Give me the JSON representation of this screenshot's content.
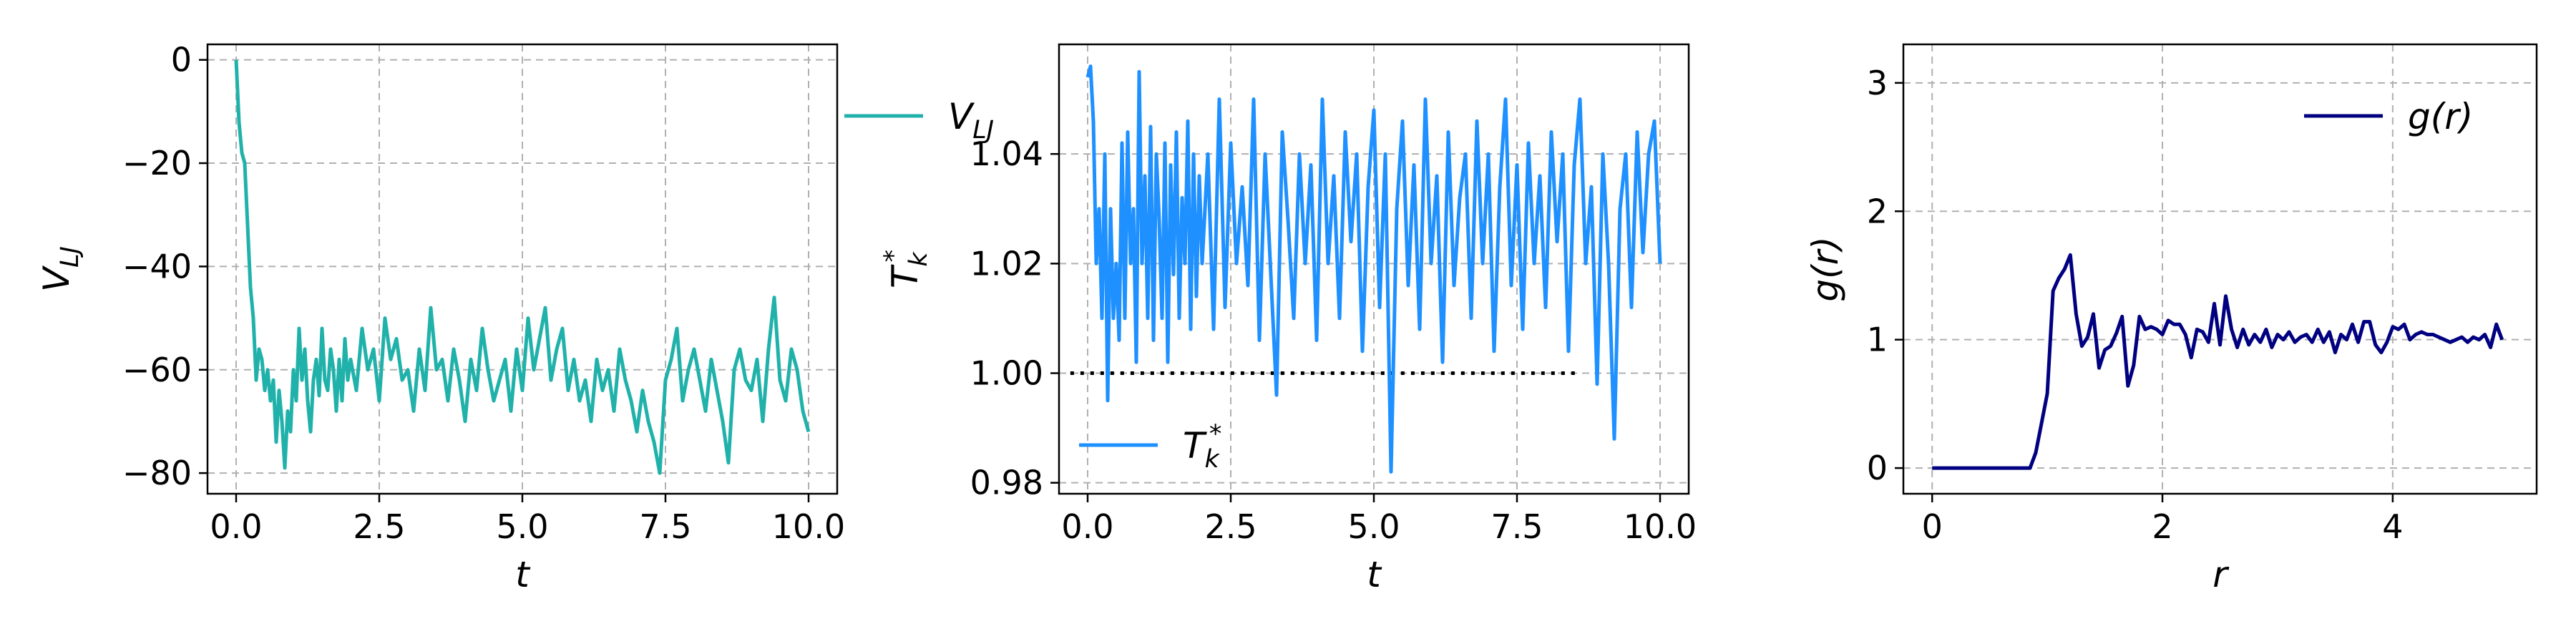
{
  "chart_data": [
    {
      "type": "line",
      "xlabel": "t",
      "ylabel": "V_LJ",
      "xlim": [
        -0.5,
        10.5
      ],
      "ylim": [
        -84,
        3
      ],
      "xticks": [
        0.0,
        2.5,
        5.0,
        7.5,
        10.0
      ],
      "yticks": [
        0,
        -20,
        -40,
        -60,
        -80
      ],
      "xtick_labels": [
        "0.0",
        "2.5",
        "5.0",
        "7.5",
        "10.0"
      ],
      "ytick_labels": [
        "0",
        "−20",
        "−40",
        "−60",
        "−80"
      ],
      "grid": true,
      "legend": {
        "placement": "top-right",
        "entries": [
          "V_LJ"
        ]
      },
      "series": [
        {
          "name": "V_LJ",
          "color": "#20b2aa",
          "x": [
            0.0,
            0.05,
            0.1,
            0.15,
            0.2,
            0.25,
            0.3,
            0.35,
            0.4,
            0.45,
            0.5,
            0.55,
            0.6,
            0.65,
            0.7,
            0.75,
            0.8,
            0.85,
            0.9,
            0.95,
            1.0,
            1.05,
            1.1,
            1.15,
            1.2,
            1.25,
            1.3,
            1.35,
            1.4,
            1.45,
            1.5,
            1.55,
            1.6,
            1.65,
            1.7,
            1.75,
            1.8,
            1.85,
            1.9,
            1.95,
            2.0,
            2.1,
            2.2,
            2.3,
            2.4,
            2.5,
            2.6,
            2.7,
            2.8,
            2.9,
            3.0,
            3.1,
            3.2,
            3.3,
            3.4,
            3.5,
            3.6,
            3.7,
            3.8,
            3.9,
            4.0,
            4.1,
            4.2,
            4.3,
            4.4,
            4.5,
            4.6,
            4.7,
            4.8,
            4.9,
            5.0,
            5.1,
            5.2,
            5.3,
            5.4,
            5.5,
            5.6,
            5.7,
            5.8,
            5.9,
            6.0,
            6.1,
            6.2,
            6.3,
            6.4,
            6.5,
            6.6,
            6.7,
            6.8,
            6.9,
            7.0,
            7.1,
            7.2,
            7.3,
            7.4,
            7.5,
            7.6,
            7.7,
            7.8,
            7.9,
            8.0,
            8.1,
            8.2,
            8.3,
            8.4,
            8.5,
            8.6,
            8.7,
            8.8,
            8.9,
            9.0,
            9.1,
            9.2,
            9.3,
            9.4,
            9.5,
            9.6,
            9.7,
            9.8,
            9.9,
            10.0
          ],
          "y": [
            0,
            -12,
            -18,
            -20,
            -32,
            -44,
            -50,
            -62,
            -56,
            -58,
            -64,
            -60,
            -66,
            -62,
            -74,
            -64,
            -70,
            -79,
            -68,
            -72,
            -60,
            -66,
            -52,
            -62,
            -56,
            -66,
            -72,
            -62,
            -58,
            -65,
            -52,
            -62,
            -64,
            -56,
            -60,
            -68,
            -58,
            -66,
            -54,
            -62,
            -58,
            -64,
            -52,
            -60,
            -56,
            -66,
            -50,
            -58,
            -54,
            -62,
            -60,
            -68,
            -56,
            -64,
            -48,
            -60,
            -58,
            -66,
            -56,
            -62,
            -70,
            -58,
            -64,
            -52,
            -60,
            -66,
            -62,
            -58,
            -68,
            -56,
            -64,
            -50,
            -60,
            -54,
            -48,
            -62,
            -56,
            -52,
            -64,
            -58,
            -66,
            -62,
            -70,
            -58,
            -64,
            -60,
            -68,
            -56,
            -62,
            -66,
            -72,
            -64,
            -70,
            -74,
            -80,
            -62,
            -58,
            -52,
            -66,
            -60,
            -56,
            -62,
            -68,
            -58,
            -64,
            -70,
            -78,
            -60,
            -56,
            -62,
            -64,
            -58,
            -70,
            -56,
            -46,
            -62,
            -66,
            -56,
            -60,
            -68,
            -72
          ]
        }
      ]
    },
    {
      "type": "line",
      "xlabel": "t",
      "ylabel": "T_k*",
      "xlim": [
        -0.5,
        10.5
      ],
      "ylim": [
        0.978,
        1.06
      ],
      "xticks": [
        0.0,
        2.5,
        5.0,
        7.5,
        10.0
      ],
      "yticks": [
        0.98,
        1.0,
        1.02,
        1.04
      ],
      "xtick_labels": [
        "0.0",
        "2.5",
        "5.0",
        "7.5",
        "10.0"
      ],
      "ytick_labels": [
        "0.98",
        "1.00",
        "1.02",
        "1.04"
      ],
      "grid": true,
      "reference_line": {
        "y": 1.0,
        "style": "dotted",
        "color": "#000000"
      },
      "legend": {
        "placement": "bottom-left",
        "entries": [
          "T_k*"
        ]
      },
      "series": [
        {
          "name": "T_k*",
          "color": "#1e90ff",
          "x": [
            0.0,
            0.05,
            0.1,
            0.15,
            0.2,
            0.25,
            0.3,
            0.35,
            0.4,
            0.45,
            0.5,
            0.55,
            0.6,
            0.65,
            0.7,
            0.75,
            0.8,
            0.85,
            0.9,
            0.95,
            1.0,
            1.05,
            1.1,
            1.15,
            1.2,
            1.25,
            1.3,
            1.35,
            1.4,
            1.45,
            1.5,
            1.55,
            1.6,
            1.65,
            1.7,
            1.75,
            1.8,
            1.85,
            1.9,
            1.95,
            2.0,
            2.1,
            2.2,
            2.3,
            2.4,
            2.5,
            2.6,
            2.7,
            2.8,
            2.9,
            3.0,
            3.1,
            3.2,
            3.3,
            3.4,
            3.5,
            3.6,
            3.7,
            3.8,
            3.9,
            4.0,
            4.1,
            4.2,
            4.3,
            4.4,
            4.5,
            4.6,
            4.7,
            4.8,
            4.9,
            5.0,
            5.1,
            5.2,
            5.3,
            5.4,
            5.5,
            5.6,
            5.7,
            5.8,
            5.9,
            6.0,
            6.1,
            6.2,
            6.3,
            6.4,
            6.5,
            6.6,
            6.7,
            6.8,
            6.9,
            7.0,
            7.1,
            7.2,
            7.3,
            7.4,
            7.5,
            7.6,
            7.7,
            7.8,
            7.9,
            8.0,
            8.1,
            8.2,
            8.3,
            8.4,
            8.5,
            8.6,
            8.7,
            8.8,
            8.9,
            9.0,
            9.1,
            9.2,
            9.3,
            9.4,
            9.5,
            9.6,
            9.7,
            9.8,
            9.9,
            10.0
          ],
          "y": [
            1.054,
            1.056,
            1.046,
            1.02,
            1.03,
            1.01,
            1.04,
            0.995,
            1.03,
            1.01,
            1.02,
            1.006,
            1.042,
            1.01,
            1.044,
            1.02,
            1.03,
            1.002,
            1.055,
            1.02,
            1.036,
            1.01,
            1.045,
            1.006,
            1.04,
            1.028,
            1.01,
            1.042,
            1.002,
            1.038,
            1.018,
            1.044,
            1.01,
            1.032,
            1.02,
            1.046,
            1.008,
            1.04,
            1.014,
            1.036,
            1.02,
            1.04,
            1.008,
            1.05,
            1.012,
            1.042,
            1.02,
            1.034,
            1.016,
            1.05,
            1.006,
            1.04,
            1.018,
            0.996,
            1.044,
            1.028,
            1.01,
            1.04,
            1.02,
            1.038,
            1.006,
            1.05,
            1.02,
            1.036,
            1.01,
            1.044,
            1.024,
            1.04,
            1.004,
            1.034,
            1.048,
            1.012,
            1.04,
            0.982,
            1.03,
            1.046,
            1.016,
            1.038,
            1.008,
            1.05,
            1.02,
            1.036,
            1.002,
            1.044,
            1.016,
            1.032,
            1.04,
            1.01,
            1.046,
            1.02,
            1.04,
            1.004,
            1.034,
            1.05,
            1.016,
            1.038,
            1.008,
            1.042,
            1.02,
            1.036,
            1.012,
            1.044,
            1.024,
            1.04,
            1.004,
            1.038,
            1.05,
            1.02,
            1.034,
            0.998,
            1.04,
            1.02,
            0.988,
            1.03,
            1.04,
            1.012,
            1.044,
            1.022,
            1.04,
            1.046,
            1.02
          ]
        }
      ]
    },
    {
      "type": "line",
      "xlabel": "r",
      "ylabel": "g(r)",
      "xlim": [
        -0.25,
        5.25
      ],
      "ylim": [
        -0.2,
        3.3
      ],
      "xticks": [
        0,
        2,
        4
      ],
      "yticks": [
        0,
        1,
        2,
        3
      ],
      "xtick_labels": [
        "0",
        "2",
        "4"
      ],
      "ytick_labels": [
        "0",
        "1",
        "2",
        "3"
      ],
      "grid": true,
      "legend": {
        "placement": "top-right",
        "entries": [
          "g(r)"
        ]
      },
      "series": [
        {
          "name": "g(r)",
          "color": "#000080",
          "x": [
            0.0,
            0.85,
            0.9,
            0.95,
            1.0,
            1.05,
            1.1,
            1.15,
            1.2,
            1.25,
            1.3,
            1.35,
            1.4,
            1.45,
            1.5,
            1.55,
            1.6,
            1.65,
            1.7,
            1.75,
            1.8,
            1.85,
            1.9,
            1.95,
            2.0,
            2.05,
            2.1,
            2.15,
            2.2,
            2.25,
            2.3,
            2.35,
            2.4,
            2.45,
            2.5,
            2.55,
            2.6,
            2.65,
            2.7,
            2.75,
            2.8,
            2.85,
            2.9,
            2.95,
            3.0,
            3.05,
            3.1,
            3.15,
            3.2,
            3.25,
            3.3,
            3.35,
            3.4,
            3.45,
            3.5,
            3.55,
            3.6,
            3.65,
            3.7,
            3.75,
            3.8,
            3.85,
            3.9,
            3.95,
            4.0,
            4.05,
            4.1,
            4.15,
            4.2,
            4.25,
            4.3,
            4.35,
            4.4,
            4.45,
            4.5,
            4.55,
            4.6,
            4.65,
            4.7,
            4.75,
            4.8,
            4.85,
            4.9,
            4.95
          ],
          "y": [
            0.0,
            0.0,
            0.12,
            0.35,
            0.58,
            1.38,
            1.48,
            1.55,
            1.66,
            1.2,
            0.95,
            1.02,
            1.2,
            0.78,
            0.92,
            0.95,
            1.05,
            1.18,
            0.64,
            0.8,
            1.18,
            1.08,
            1.1,
            1.08,
            1.04,
            1.15,
            1.12,
            1.12,
            1.04,
            0.86,
            1.08,
            1.06,
            0.98,
            1.28,
            0.96,
            1.34,
            1.08,
            0.94,
            1.08,
            0.96,
            1.04,
            0.98,
            1.08,
            0.94,
            1.04,
            1.0,
            1.06,
            0.98,
            1.02,
            1.04,
            0.98,
            1.08,
            0.98,
            1.06,
            0.9,
            1.04,
            1.0,
            1.12,
            0.98,
            1.14,
            1.14,
            0.96,
            0.9,
            0.98,
            1.1,
            1.08,
            1.12,
            1.0,
            1.04,
            1.06,
            1.04,
            1.04,
            1.02,
            1.0,
            0.98,
            1.0,
            1.02,
            0.98,
            1.02,
            1.0,
            1.04,
            0.94,
            1.12,
            1.0
          ]
        }
      ]
    }
  ]
}
